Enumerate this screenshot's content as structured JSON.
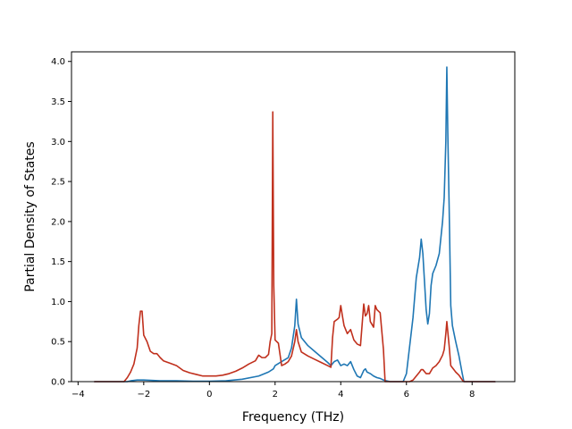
{
  "chart_data": {
    "type": "line",
    "title": "",
    "xlabel": "Frequency (THz)",
    "ylabel": "Partial Density of States",
    "xlim": [
      -4.2,
      9.3
    ],
    "ylim": [
      0.0,
      4.12
    ],
    "xticks": [
      -4,
      -2,
      0,
      2,
      4,
      6,
      8
    ],
    "xtick_labels": [
      "−4",
      "−2",
      "0",
      "2",
      "4",
      "6",
      "8"
    ],
    "yticks": [
      0.0,
      0.5,
      1.0,
      1.5,
      2.0,
      2.5,
      3.0,
      3.5,
      4.0
    ],
    "ytick_labels": [
      "0.0",
      "0.5",
      "1.0",
      "1.5",
      "2.0",
      "2.5",
      "3.0",
      "3.5",
      "4.0"
    ],
    "grid": false,
    "series": [
      {
        "color": "#1f77b4",
        "points": [
          [
            -3.5,
            0.0
          ],
          [
            -2.5,
            0.0
          ],
          [
            -2.4,
            0.01
          ],
          [
            -2.2,
            0.02
          ],
          [
            -2.0,
            0.02
          ],
          [
            -1.5,
            0.01
          ],
          [
            -1.0,
            0.01
          ],
          [
            -0.5,
            0.005
          ],
          [
            0.0,
            0.005
          ],
          [
            0.5,
            0.01
          ],
          [
            1.0,
            0.03
          ],
          [
            1.5,
            0.07
          ],
          [
            1.8,
            0.12
          ],
          [
            1.95,
            0.16
          ],
          [
            2.0,
            0.2
          ],
          [
            2.2,
            0.25
          ],
          [
            2.4,
            0.3
          ],
          [
            2.5,
            0.42
          ],
          [
            2.6,
            0.7
          ],
          [
            2.65,
            1.03
          ],
          [
            2.7,
            0.72
          ],
          [
            2.8,
            0.55
          ],
          [
            3.0,
            0.45
          ],
          [
            3.2,
            0.38
          ],
          [
            3.4,
            0.31
          ],
          [
            3.6,
            0.24
          ],
          [
            3.7,
            0.2
          ],
          [
            3.8,
            0.25
          ],
          [
            3.9,
            0.27
          ],
          [
            4.0,
            0.2
          ],
          [
            4.1,
            0.22
          ],
          [
            4.2,
            0.2
          ],
          [
            4.3,
            0.25
          ],
          [
            4.4,
            0.15
          ],
          [
            4.5,
            0.07
          ],
          [
            4.6,
            0.05
          ],
          [
            4.7,
            0.14
          ],
          [
            4.75,
            0.16
          ],
          [
            4.8,
            0.12
          ],
          [
            4.9,
            0.1
          ],
          [
            5.0,
            0.07
          ],
          [
            5.1,
            0.05
          ],
          [
            5.2,
            0.04
          ],
          [
            5.3,
            0.02
          ],
          [
            5.4,
            0.01
          ],
          [
            5.5,
            0.0
          ],
          [
            5.9,
            0.0
          ],
          [
            6.0,
            0.1
          ],
          [
            6.1,
            0.45
          ],
          [
            6.2,
            0.8
          ],
          [
            6.3,
            1.3
          ],
          [
            6.4,
            1.55
          ],
          [
            6.45,
            1.78
          ],
          [
            6.5,
            1.6
          ],
          [
            6.55,
            1.25
          ],
          [
            6.6,
            0.9
          ],
          [
            6.65,
            0.72
          ],
          [
            6.7,
            0.85
          ],
          [
            6.75,
            1.2
          ],
          [
            6.8,
            1.35
          ],
          [
            6.9,
            1.45
          ],
          [
            7.0,
            1.6
          ],
          [
            7.05,
            1.8
          ],
          [
            7.1,
            2.0
          ],
          [
            7.15,
            2.3
          ],
          [
            7.2,
            3.0
          ],
          [
            7.23,
            3.93
          ],
          [
            7.26,
            3.1
          ],
          [
            7.3,
            2.2
          ],
          [
            7.35,
            0.95
          ],
          [
            7.4,
            0.7
          ],
          [
            7.5,
            0.5
          ],
          [
            7.6,
            0.32
          ],
          [
            7.7,
            0.1
          ],
          [
            7.75,
            0.0
          ],
          [
            8.7,
            0.0
          ]
        ]
      },
      {
        "color": "#c0301d",
        "points": [
          [
            -3.5,
            0.0
          ],
          [
            -2.6,
            0.0
          ],
          [
            -2.5,
            0.05
          ],
          [
            -2.4,
            0.12
          ],
          [
            -2.3,
            0.22
          ],
          [
            -2.2,
            0.42
          ],
          [
            -2.15,
            0.7
          ],
          [
            -2.1,
            0.88
          ],
          [
            -2.05,
            0.88
          ],
          [
            -2.0,
            0.58
          ],
          [
            -1.9,
            0.5
          ],
          [
            -1.8,
            0.38
          ],
          [
            -1.7,
            0.35
          ],
          [
            -1.6,
            0.35
          ],
          [
            -1.5,
            0.3
          ],
          [
            -1.4,
            0.26
          ],
          [
            -1.2,
            0.23
          ],
          [
            -1.0,
            0.2
          ],
          [
            -0.8,
            0.14
          ],
          [
            -0.6,
            0.11
          ],
          [
            -0.4,
            0.09
          ],
          [
            -0.2,
            0.07
          ],
          [
            0.0,
            0.07
          ],
          [
            0.2,
            0.07
          ],
          [
            0.4,
            0.08
          ],
          [
            0.6,
            0.1
          ],
          [
            0.8,
            0.13
          ],
          [
            1.0,
            0.17
          ],
          [
            1.2,
            0.22
          ],
          [
            1.4,
            0.26
          ],
          [
            1.5,
            0.33
          ],
          [
            1.6,
            0.3
          ],
          [
            1.7,
            0.3
          ],
          [
            1.8,
            0.34
          ],
          [
            1.85,
            0.5
          ],
          [
            1.9,
            0.6
          ],
          [
            1.93,
            3.37
          ],
          [
            1.96,
            1.2
          ],
          [
            2.0,
            0.52
          ],
          [
            2.1,
            0.48
          ],
          [
            2.2,
            0.2
          ],
          [
            2.3,
            0.22
          ],
          [
            2.4,
            0.25
          ],
          [
            2.5,
            0.32
          ],
          [
            2.6,
            0.5
          ],
          [
            2.65,
            0.65
          ],
          [
            2.7,
            0.5
          ],
          [
            2.8,
            0.37
          ],
          [
            3.0,
            0.32
          ],
          [
            3.2,
            0.28
          ],
          [
            3.4,
            0.24
          ],
          [
            3.6,
            0.2
          ],
          [
            3.7,
            0.18
          ],
          [
            3.75,
            0.55
          ],
          [
            3.8,
            0.75
          ],
          [
            3.9,
            0.78
          ],
          [
            3.95,
            0.8
          ],
          [
            4.0,
            0.95
          ],
          [
            4.05,
            0.82
          ],
          [
            4.1,
            0.7
          ],
          [
            4.2,
            0.6
          ],
          [
            4.3,
            0.65
          ],
          [
            4.4,
            0.52
          ],
          [
            4.5,
            0.47
          ],
          [
            4.6,
            0.45
          ],
          [
            4.7,
            0.97
          ],
          [
            4.75,
            0.82
          ],
          [
            4.8,
            0.85
          ],
          [
            4.85,
            0.95
          ],
          [
            4.9,
            0.75
          ],
          [
            5.0,
            0.68
          ],
          [
            5.05,
            0.95
          ],
          [
            5.1,
            0.9
          ],
          [
            5.2,
            0.86
          ],
          [
            5.3,
            0.4
          ],
          [
            5.35,
            0.0
          ],
          [
            6.1,
            0.0
          ],
          [
            6.2,
            0.02
          ],
          [
            6.3,
            0.07
          ],
          [
            6.4,
            0.12
          ],
          [
            6.45,
            0.15
          ],
          [
            6.5,
            0.15
          ],
          [
            6.6,
            0.1
          ],
          [
            6.7,
            0.1
          ],
          [
            6.8,
            0.17
          ],
          [
            6.9,
            0.2
          ],
          [
            7.0,
            0.25
          ],
          [
            7.1,
            0.33
          ],
          [
            7.15,
            0.4
          ],
          [
            7.2,
            0.6
          ],
          [
            7.23,
            0.75
          ],
          [
            7.3,
            0.45
          ],
          [
            7.35,
            0.2
          ],
          [
            7.5,
            0.12
          ],
          [
            7.6,
            0.08
          ],
          [
            7.7,
            0.02
          ],
          [
            7.75,
            0.0
          ],
          [
            8.7,
            0.0
          ]
        ]
      }
    ]
  }
}
